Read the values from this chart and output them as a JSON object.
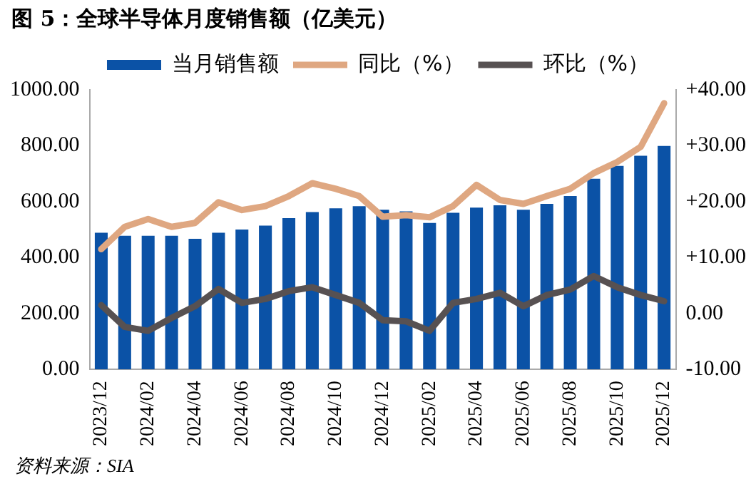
{
  "chart_data": {
    "type": "bar",
    "title": "图 5：全球半导体月度销售额（亿美元）",
    "categories": [
      "2023/12",
      null,
      "2024/02",
      null,
      "2024/04",
      null,
      "2024/06",
      null,
      "2024/08",
      null,
      "2024/10",
      null,
      "2024/12",
      null,
      "2025/02",
      null,
      "2025/04",
      null,
      "2025/06",
      null,
      "2025/08",
      null,
      "2025/10",
      null,
      "2025/12"
    ],
    "series": [
      {
        "name": "当月销售额",
        "color": "#0b52a6",
        "values": [
          489,
          478,
          478,
          478,
          467,
          489,
          500,
          514,
          541,
          563,
          576,
          584,
          571,
          565,
          524,
          560,
          579,
          587,
          571,
          592,
          620,
          682,
          728,
          764,
          799
        ]
      },
      {
        "name": "同比（%）",
        "type": "line",
        "axis": "y2",
        "color": "#dfa781",
        "values": [
          11.5,
          15.5,
          16.9,
          15.5,
          16.2,
          19.9,
          18.5,
          19.2,
          21.0,
          23.3,
          22.3,
          21.0,
          17.3,
          17.6,
          17.2,
          19.2,
          23.0,
          20.3,
          19.6,
          21.0,
          22.3,
          25.1,
          27.1,
          29.8,
          37.6
        ]
      },
      {
        "name": "环比（%）",
        "type": "line",
        "axis": "y2",
        "color": "#575152",
        "values": [
          1.5,
          -2.4,
          -3.1,
          -0.8,
          1.3,
          4.4,
          1.9,
          2.6,
          4.0,
          4.7,
          3.3,
          1.9,
          -1.2,
          -1.4,
          -3.1,
          1.9,
          2.6,
          3.7,
          1.3,
          3.3,
          4.3,
          6.7,
          4.7,
          3.3,
          2.2
        ]
      }
    ],
    "ylim": [
      0,
      1000
    ],
    "yticks": [
      {
        "value": 0,
        "label": "0.00"
      },
      {
        "value": 200,
        "label": "200.00"
      },
      {
        "value": 400,
        "label": "400.00"
      },
      {
        "value": 600,
        "label": "600.00"
      },
      {
        "value": 800,
        "label": "800.00"
      },
      {
        "value": 1000,
        "label": "1000.00"
      }
    ],
    "y2lim": [
      -10,
      40
    ],
    "y2ticks": [
      {
        "value": -10,
        "label": "-10.00"
      },
      {
        "value": 0,
        "label": "0.00"
      },
      {
        "value": 10,
        "label": "+10.00"
      },
      {
        "value": 20,
        "label": "+20.00"
      },
      {
        "value": 30,
        "label": "+30.00"
      },
      {
        "value": 40,
        "label": "+40.00"
      }
    ],
    "legend": "top",
    "grid": false,
    "marker": "none",
    "line_style": "solid",
    "annotations": [
      "资料来源：SIA"
    ]
  }
}
